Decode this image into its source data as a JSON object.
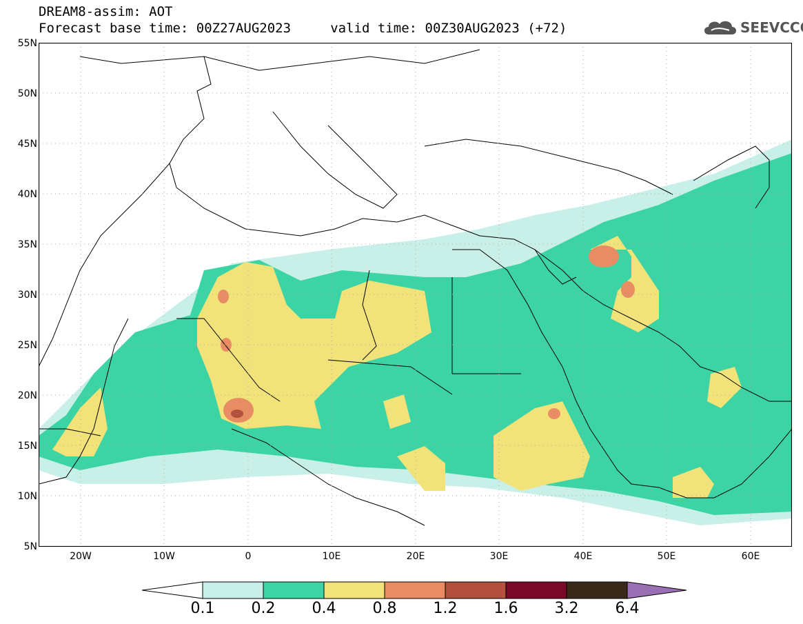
{
  "header": {
    "title": "DREAM8-assim: AOT",
    "subtitle": "Forecast base time: 00Z27AUG2023     valid time: 00Z30AUG2023 (+72)",
    "brand": "SEEVCCC",
    "brand_icon": "cloud-logo-icon"
  },
  "map": {
    "lat_labels": [
      "55N",
      "50N",
      "45N",
      "40N",
      "35N",
      "30N",
      "25N",
      "20N",
      "15N",
      "10N",
      "5N"
    ],
    "lon_labels": [
      "20W",
      "10W",
      "0",
      "10E",
      "20E",
      "30E",
      "40E",
      "50E",
      "60E"
    ],
    "extent": {
      "lon_min": -25,
      "lon_max": 65,
      "lat_min": 5,
      "lat_max": 55
    }
  },
  "colorbar": {
    "labels": [
      "0.1",
      "0.2",
      "0.4",
      "0.8",
      "1.2",
      "1.6",
      "3.2",
      "6.4"
    ],
    "colors": [
      "#c8f0e8",
      "#3cd4a4",
      "#f2e27a",
      "#e88c64",
      "#b4503e",
      "#7a0a2a",
      "#3a2818",
      "#9a70b4"
    ],
    "levels": [
      0.1,
      0.2,
      0.4,
      0.8,
      1.2,
      1.6,
      3.2,
      6.4
    ]
  }
}
